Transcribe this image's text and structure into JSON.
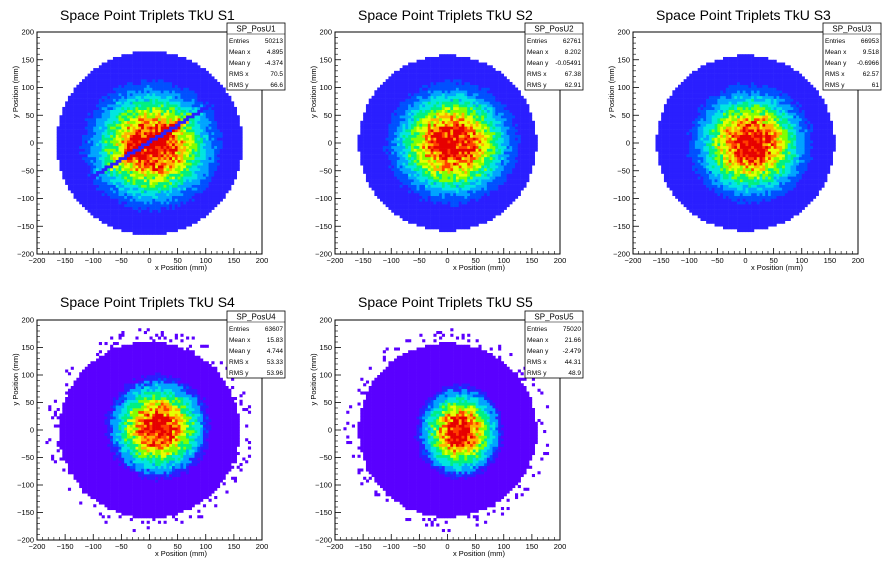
{
  "chart_data": [
    {
      "type": "heatmap",
      "title": "Space Point Triplets TkU S1",
      "xlabel": "x Position (mm)",
      "ylabel": "y Position (mm)",
      "xlim": [
        -200,
        200
      ],
      "ylim": [
        -200,
        200
      ],
      "xticks": [
        "−200",
        "−150",
        "−100",
        "−50",
        "0",
        "50",
        "100",
        "150",
        "200"
      ],
      "yticks": [
        "−200",
        "−150",
        "−100",
        "−50",
        "0",
        "50",
        "100",
        "150",
        "200"
      ],
      "stats": {
        "name": "SP_PosU1",
        "rows": [
          {
            "label": "Entries",
            "value": "50213"
          },
          {
            "label": "Mean x",
            "value": "4.895"
          },
          {
            "label": "Mean y",
            "value": "-4.374"
          },
          {
            "label": "RMS x",
            "value": "70.5"
          },
          {
            "label": "RMS y",
            "value": "66.6"
          }
        ]
      },
      "distribution": {
        "mean_x": 4.895,
        "mean_y": -4.374,
        "rms_x": 70.5,
        "rms_y": 66.6,
        "radius": 165,
        "gap_line": true
      }
    },
    {
      "type": "heatmap",
      "title": "Space Point Triplets TkU S2",
      "xlabel": "x Position (mm)",
      "ylabel": "y Position (mm)",
      "xlim": [
        -200,
        200
      ],
      "ylim": [
        -200,
        200
      ],
      "xticks": [
        "−200",
        "−150",
        "−100",
        "−50",
        "0",
        "50",
        "100",
        "150",
        "200"
      ],
      "yticks": [
        "−200",
        "−150",
        "−100",
        "−50",
        "0",
        "50",
        "100",
        "150",
        "200"
      ],
      "stats": {
        "name": "SP_PosU2",
        "rows": [
          {
            "label": "Entries",
            "value": "62761"
          },
          {
            "label": "Mean x",
            "value": "8.202"
          },
          {
            "label": "Mean y",
            "value": "-0.05491"
          },
          {
            "label": "RMS x",
            "value": "67.38"
          },
          {
            "label": "RMS y",
            "value": "62.91"
          }
        ]
      },
      "distribution": {
        "mean_x": 8.202,
        "mean_y": -0.05491,
        "rms_x": 67.38,
        "rms_y": 62.91,
        "radius": 158,
        "gap_line": false
      }
    },
    {
      "type": "heatmap",
      "title": "Space Point Triplets TkU S3",
      "xlabel": "x Position (mm)",
      "ylabel": "y Position (mm)",
      "xlim": [
        -200,
        200
      ],
      "ylim": [
        -200,
        200
      ],
      "xticks": [
        "−200",
        "−150",
        "−100",
        "−50",
        "0",
        "50",
        "100",
        "150",
        "200"
      ],
      "yticks": [
        "−200",
        "−150",
        "−100",
        "−50",
        "0",
        "50",
        "100",
        "150",
        "200"
      ],
      "stats": {
        "name": "SP_PosU3",
        "rows": [
          {
            "label": "Entries",
            "value": "66953"
          },
          {
            "label": "Mean x",
            "value": "9.518"
          },
          {
            "label": "Mean y",
            "value": "-0.6966"
          },
          {
            "label": "RMS x",
            "value": "62.57"
          },
          {
            "label": "RMS y",
            "value": "61"
          }
        ]
      },
      "distribution": {
        "mean_x": 9.518,
        "mean_y": -0.6966,
        "rms_x": 62.57,
        "rms_y": 61,
        "radius": 158,
        "gap_line": false
      }
    },
    {
      "type": "heatmap",
      "title": "Space Point Triplets TkU S4",
      "xlabel": "x Position (mm)",
      "ylabel": "y Position (mm)",
      "xlim": [
        -200,
        200
      ],
      "ylim": [
        -200,
        200
      ],
      "xticks": [
        "−200",
        "−150",
        "−100",
        "−50",
        "0",
        "50",
        "100",
        "150",
        "200"
      ],
      "yticks": [
        "−200",
        "−150",
        "−100",
        "−50",
        "0",
        "50",
        "100",
        "150",
        "200"
      ],
      "stats": {
        "name": "SP_PosU4",
        "rows": [
          {
            "label": "Entries",
            "value": "63607"
          },
          {
            "label": "Mean x",
            "value": "15.83"
          },
          {
            "label": "Mean y",
            "value": "4.744"
          },
          {
            "label": "RMS x",
            "value": "53.33"
          },
          {
            "label": "RMS y",
            "value": "53.96"
          }
        ]
      },
      "distribution": {
        "mean_x": 15.83,
        "mean_y": 4.744,
        "rms_x": 53.33,
        "rms_y": 53.96,
        "radius": 160,
        "gap_line": false
      }
    },
    {
      "type": "heatmap",
      "title": "Space Point Triplets TkU S5",
      "xlabel": "x Position (mm)",
      "ylabel": "y Position (mm)",
      "xlim": [
        -200,
        200
      ],
      "ylim": [
        -200,
        200
      ],
      "xticks": [
        "−200",
        "−150",
        "−100",
        "−50",
        "0",
        "50",
        "100",
        "150",
        "200"
      ],
      "yticks": [
        "−200",
        "−150",
        "−100",
        "−50",
        "0",
        "50",
        "100",
        "150",
        "200"
      ],
      "stats": {
        "name": "SP_PosU5",
        "rows": [
          {
            "label": "Entries",
            "value": "75020"
          },
          {
            "label": "Mean x",
            "value": "21.66"
          },
          {
            "label": "Mean y",
            "value": "-2.479"
          },
          {
            "label": "RMS x",
            "value": "44.31"
          },
          {
            "label": "RMS y",
            "value": "48.9"
          }
        ]
      },
      "distribution": {
        "mean_x": 21.66,
        "mean_y": -2.479,
        "rms_x": 44.31,
        "rms_y": 48.9,
        "radius": 158,
        "gap_line": false
      }
    }
  ],
  "palette": [
    "#5a00ff",
    "#2a1fff",
    "#0050ff",
    "#00a4ff",
    "#00e6e0",
    "#00f080",
    "#80ff00",
    "#e6ff00",
    "#ffb000",
    "#ff4000",
    "#e60000"
  ]
}
